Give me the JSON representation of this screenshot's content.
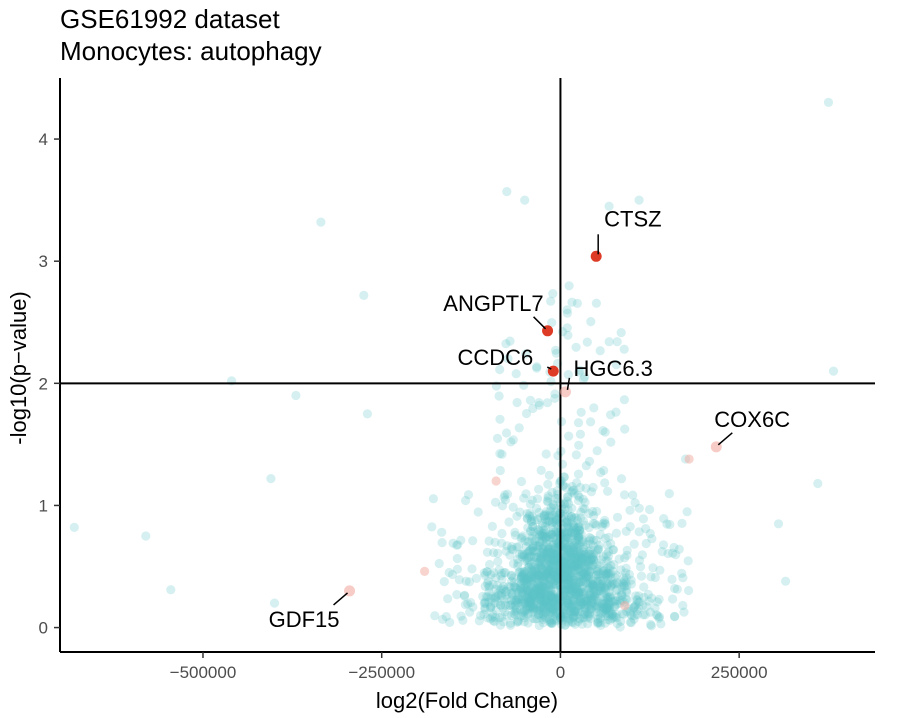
{
  "chart_data": {
    "type": "scatter",
    "title": "GSE61992 dataset",
    "subtitle": "Monocytes: autophagy",
    "xlabel": "log2(Fold Change)",
    "ylabel": "-log10(p−value)",
    "xlim": [
      -700000,
      440000
    ],
    "ylim": [
      -0.2,
      4.5
    ],
    "x_ticks": [
      -500000,
      -250000,
      0,
      250000
    ],
    "x_tick_labels": [
      "−500000",
      "−250000",
      "0",
      "250000"
    ],
    "y_ticks": [
      0,
      1,
      2,
      3,
      4
    ],
    "y_tick_labels": [
      "0",
      "1",
      "2",
      "3",
      "4"
    ],
    "reference_lines": {
      "x": 0,
      "y": 2
    },
    "grid": false,
    "legend": "none",
    "colors": {
      "background_points": "#5bc5c8",
      "highlighted": "#de3b26",
      "faded_highlight": "#f2a9a0"
    },
    "highlighted_genes": [
      {
        "label": "CTSZ",
        "x": 50000,
        "y": 3.04
      },
      {
        "label": "ANGPTL7",
        "x": -18000,
        "y": 2.43
      },
      {
        "label": "CCDC6",
        "x": -10000,
        "y": 2.1
      },
      {
        "label": "HGC6.3",
        "x": 7000,
        "y": 1.93
      },
      {
        "label": "COX6C",
        "x": 218000,
        "y": 1.48
      },
      {
        "label": "GDF15",
        "x": -295000,
        "y": 0.3
      }
    ],
    "notable_points": [
      {
        "x": 375000,
        "y": 4.3
      },
      {
        "x": 382000,
        "y": 2.1
      },
      {
        "x": 360000,
        "y": 1.18
      },
      {
        "x": -335000,
        "y": 3.32
      },
      {
        "x": -680000,
        "y": 0.82
      },
      {
        "x": -580000,
        "y": 0.75
      },
      {
        "x": -545000,
        "y": 0.31
      },
      {
        "x": -460000,
        "y": 2.02
      },
      {
        "x": -405000,
        "y": 1.22
      },
      {
        "x": -400000,
        "y": 0.2
      },
      {
        "x": -370000,
        "y": 1.9
      },
      {
        "x": -275000,
        "y": 2.72
      },
      {
        "x": -270000,
        "y": 1.75
      },
      {
        "x": -75000,
        "y": 3.57
      },
      {
        "x": -50000,
        "y": 3.5
      },
      {
        "x": 68000,
        "y": 3.45
      },
      {
        "x": 110000,
        "y": 3.5
      },
      {
        "x": 175000,
        "y": 1.38
      },
      {
        "x": 305000,
        "y": 0.85
      },
      {
        "x": 315000,
        "y": 0.38
      }
    ]
  }
}
